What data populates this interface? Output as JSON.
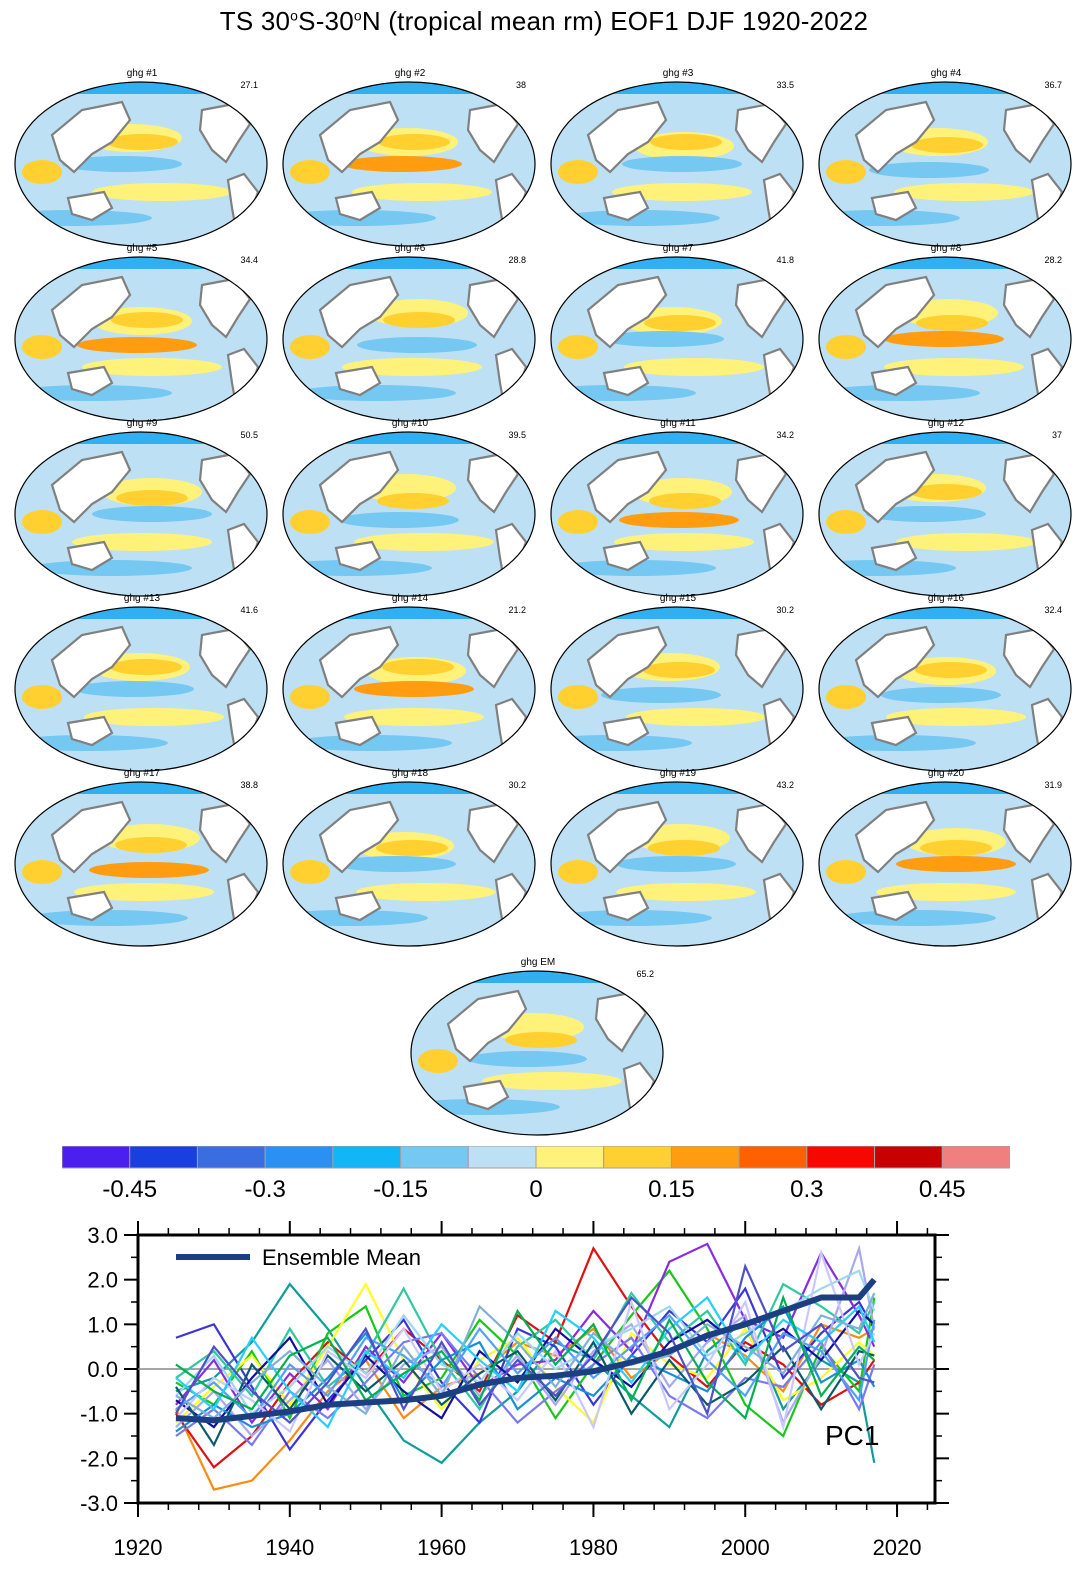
{
  "title": {
    "text_a": "TS 30",
    "sup_a": "o",
    "text_b": "S-30",
    "sup_b": "o",
    "text_c": "N (tropical mean rm) EOF1 DJF 1920-2022"
  },
  "panels": [
    {
      "label": "ghg #1",
      "value": "27.1"
    },
    {
      "label": "ghg #2",
      "value": "38"
    },
    {
      "label": "ghg #3",
      "value": "33.5"
    },
    {
      "label": "ghg #4",
      "value": "36.7"
    },
    {
      "label": "ghg #5",
      "value": "34.4"
    },
    {
      "label": "ghg #6",
      "value": "28.8"
    },
    {
      "label": "ghg #7",
      "value": "41.8"
    },
    {
      "label": "ghg #8",
      "value": "28.2"
    },
    {
      "label": "ghg #9",
      "value": "50.5"
    },
    {
      "label": "ghg #10",
      "value": "39.5"
    },
    {
      "label": "ghg #11",
      "value": "34.2"
    },
    {
      "label": "ghg #12",
      "value": "37"
    },
    {
      "label": "ghg #13",
      "value": "41.6"
    },
    {
      "label": "ghg #14",
      "value": "21.2"
    },
    {
      "label": "ghg #15",
      "value": "30.2"
    },
    {
      "label": "ghg #16",
      "value": "32.4"
    },
    {
      "label": "ghg #17",
      "value": "38.8"
    },
    {
      "label": "ghg #18",
      "value": "30.2"
    },
    {
      "label": "ghg #19",
      "value": "43.2"
    },
    {
      "label": "ghg #20",
      "value": "31.9"
    },
    {
      "label": "ghg EM",
      "value": "65.2"
    }
  ],
  "colorbar": {
    "colors": [
      "#4b1ff0",
      "#1a3fe0",
      "#3a6de0",
      "#2a90f2",
      "#10b6f5",
      "#74c8f2",
      "#bde0f4",
      "#fff27a",
      "#ffd030",
      "#ff9c10",
      "#ff6000",
      "#f50800",
      "#c80000",
      "#f08080"
    ],
    "labels": [
      "-0.45",
      "-0.3",
      "-0.15",
      "0",
      "0.15",
      "0.3",
      "0.45"
    ]
  },
  "chart_data": {
    "type": "line",
    "title": "PC1",
    "legend_label": "Ensemble Mean",
    "xlim": [
      1920,
      2025
    ],
    "ylim": [
      -3.0,
      3.0
    ],
    "xticks": [
      "1920",
      "1940",
      "1960",
      "1980",
      "2000",
      "2020"
    ],
    "yticks": [
      "3.0",
      "2.0",
      "1.0",
      "0.0",
      "-1.0",
      "-2.0",
      "-3.0"
    ],
    "zero_line": 0.0,
    "ensemble_mean": {
      "color": "#1c3f82",
      "x": [
        1925,
        1930,
        1935,
        1940,
        1945,
        1950,
        1955,
        1960,
        1965,
        1970,
        1975,
        1980,
        1985,
        1990,
        1995,
        2000,
        2005,
        2010,
        2015,
        2017
      ],
      "values": [
        -1.1,
        -1.15,
        -1.05,
        -0.95,
        -0.8,
        -0.75,
        -0.7,
        -0.6,
        -0.35,
        -0.2,
        -0.15,
        -0.05,
        0.15,
        0.4,
        0.75,
        1.0,
        1.3,
        1.6,
        1.6,
        2.0
      ]
    },
    "members": [
      {
        "name": "ghg #1",
        "color": "#ff8a10",
        "values": [
          -0.9,
          -2.7,
          -2.5,
          -1.6,
          -0.5,
          0.2,
          -1.1,
          -0.4,
          -0.1,
          0.6,
          0.3,
          0.9,
          -0.2,
          0.4,
          0.8,
          0.3,
          -0.5,
          1.0,
          0.7,
          0.9
        ]
      },
      {
        "name": "ghg #2",
        "color": "#0f9d9a",
        "values": [
          -0.5,
          -0.2,
          0.6,
          1.9,
          0.9,
          -0.4,
          -1.6,
          -2.1,
          -1.2,
          -0.5,
          0.6,
          0.2,
          -0.6,
          -1.3,
          0.4,
          1.1,
          -0.9,
          0.2,
          -0.3,
          -2.1
        ]
      },
      {
        "name": "ghg #3",
        "color": "#e01010",
        "values": [
          -1.0,
          -2.2,
          -1.5,
          -0.3,
          0.6,
          -0.1,
          0.9,
          0.2,
          -0.5,
          1.2,
          0.6,
          2.7,
          1.4,
          0.3,
          -0.4,
          0.6,
          0.1,
          -0.8,
          -0.3,
          0.2
        ]
      },
      {
        "name": "ghg #4",
        "color": "#3c35d8",
        "values": [
          0.7,
          1.0,
          -0.4,
          -1.8,
          -0.7,
          0.2,
          1.1,
          -0.3,
          -1.2,
          0.9,
          0.5,
          -0.8,
          0.3,
          1.3,
          0.6,
          1.8,
          -0.2,
          0.8,
          1.5,
          0.9
        ]
      },
      {
        "name": "ghg #5",
        "color": "#18c818",
        "values": [
          -0.3,
          -0.8,
          0.4,
          -1.1,
          0.8,
          1.4,
          -0.6,
          -0.2,
          1.1,
          0.3,
          -1.1,
          0.1,
          1.2,
          2.2,
          0.9,
          -0.8,
          -1.5,
          0.5,
          -0.5,
          1.6
        ]
      },
      {
        "name": "ghg #6",
        "color": "#ffff20",
        "values": [
          -1.2,
          -0.4,
          0.3,
          -0.8,
          0.5,
          1.9,
          0.2,
          -0.9,
          0.2,
          0.7,
          -0.4,
          -1.2,
          0.8,
          0.1,
          -0.2,
          0.9,
          -0.7,
          -0.2,
          0.6,
          0.3
        ]
      },
      {
        "name": "ghg #7",
        "color": "#8a2be2",
        "values": [
          -0.8,
          0.2,
          -1.2,
          -0.1,
          -0.9,
          0.5,
          -0.3,
          0.8,
          -0.4,
          0.1,
          0.2,
          1.3,
          0.4,
          2.4,
          2.8,
          1.1,
          0.7,
          2.6,
          1.2,
          0.5
        ]
      },
      {
        "name": "ghg #8",
        "color": "#2fc8a0",
        "values": [
          -0.2,
          0.4,
          -0.6,
          0.9,
          -0.4,
          0.3,
          1.8,
          0.2,
          -0.9,
          0.5,
          1.1,
          0.2,
          1.7,
          0.6,
          1.3,
          0.1,
          1.9,
          1.4,
          0.8,
          1.5
        ]
      },
      {
        "name": "ghg #9",
        "color": "#7a7af0",
        "values": [
          -1.5,
          -0.9,
          -1.7,
          -0.5,
          -1.1,
          -0.3,
          0.6,
          0.8,
          -0.2,
          -1.2,
          -0.5,
          0.1,
          0.7,
          -0.6,
          -1.1,
          -0.2,
          -0.4,
          0.6,
          -0.9,
          0.1
        ]
      },
      {
        "name": "ghg #10",
        "color": "#a8a8ee",
        "values": [
          -1.3,
          -0.5,
          -1.5,
          -0.7,
          0.2,
          -0.9,
          0.1,
          0.5,
          -0.6,
          0.3,
          -0.8,
          0.4,
          1.0,
          -0.4,
          0.6,
          1.2,
          -1.2,
          0.3,
          2.7,
          0.9
        ]
      },
      {
        "name": "ghg #11",
        "color": "#9cd8f0",
        "values": [
          -0.6,
          0.3,
          -1.0,
          -0.4,
          0.5,
          -0.1,
          1.2,
          0.1,
          -0.3,
          0.8,
          0.0,
          0.5,
          0.9,
          1.4,
          0.3,
          0.8,
          1.3,
          1.8,
          2.2,
          1.3
        ]
      },
      {
        "name": "ghg #12",
        "color": "#1010a0",
        "values": [
          -0.7,
          -1.3,
          -0.2,
          0.7,
          -0.8,
          0.3,
          -0.5,
          -1.1,
          0.4,
          -0.3,
          0.9,
          0.2,
          -0.4,
          0.6,
          1.1,
          0.4,
          0.9,
          0.2,
          1.3,
          1.0
        ]
      },
      {
        "name": "ghg #13",
        "color": "#1890d8",
        "values": [
          -1.4,
          -0.8,
          -1.3,
          -1.0,
          -0.2,
          0.8,
          -0.7,
          0.2,
          0.6,
          -0.9,
          -0.2,
          -0.6,
          0.3,
          -0.1,
          -0.5,
          0.7,
          1.4,
          -0.3,
          0.2,
          -0.4
        ]
      },
      {
        "name": "ghg #14",
        "color": "#0a5a6a",
        "values": [
          -0.4,
          -1.7,
          0.1,
          -0.9,
          0.3,
          -0.5,
          0.2,
          -0.8,
          -0.1,
          0.4,
          -0.7,
          0.6,
          -1.0,
          0.2,
          -0.8,
          -0.3,
          0.5,
          -0.9,
          0.4,
          0.3
        ]
      },
      {
        "name": "ghg #15",
        "color": "#50a0ff",
        "values": [
          -0.9,
          -0.3,
          -1.1,
          0.1,
          -0.6,
          0.7,
          0.3,
          -0.4,
          0.9,
          -0.1,
          0.7,
          -0.2,
          0.5,
          1.2,
          0.2,
          -0.6,
          0.8,
          0.4,
          -0.7,
          1.1
        ]
      },
      {
        "name": "ghg #16",
        "color": "#c8c8ff",
        "values": [
          -1.1,
          -0.2,
          -0.7,
          -1.4,
          0.4,
          -0.2,
          0.9,
          -0.5,
          0.1,
          -0.7,
          0.4,
          -1.3,
          1.5,
          -0.9,
          0.1,
          1.5,
          -1.3,
          2.6,
          0.1,
          0.8
        ]
      },
      {
        "name": "ghg #17",
        "color": "#24d0ff",
        "values": [
          -0.2,
          -0.9,
          0.7,
          -0.5,
          -1.3,
          0.4,
          -0.2,
          1.0,
          0.2,
          -0.5,
          1.3,
          0.7,
          -0.3,
          0.9,
          1.6,
          0.2,
          1.1,
          0.6,
          1.4,
          0.6
        ]
      },
      {
        "name": "ghg #18",
        "color": "#80b0d8",
        "values": [
          -0.6,
          -1.1,
          -0.3,
          0.4,
          -0.4,
          -1.0,
          0.5,
          -0.6,
          1.4,
          0.6,
          -0.4,
          0.8,
          0.1,
          0.3,
          1.0,
          0.5,
          -0.1,
          1.2,
          0.9,
          1.7
        ]
      },
      {
        "name": "ghg #19",
        "color": "#00b050",
        "values": [
          0.1,
          -0.5,
          -0.9,
          0.3,
          0.7,
          -0.7,
          -0.1,
          0.4,
          -0.7,
          1.3,
          0.1,
          1.0,
          -0.7,
          1.1,
          -0.3,
          -1.1,
          1.6,
          -0.6,
          0.5,
          0.2
        ]
      },
      {
        "name": "ghg #20",
        "color": "#5050c8",
        "values": [
          -1.0,
          0.5,
          -0.5,
          -1.2,
          -0.3,
          0.9,
          -0.9,
          0.6,
          -0.8,
          0.2,
          -0.6,
          0.3,
          1.6,
          0.8,
          -1.0,
          2.3,
          0.4,
          1.0,
          -0.2,
          -0.3
        ]
      }
    ]
  }
}
